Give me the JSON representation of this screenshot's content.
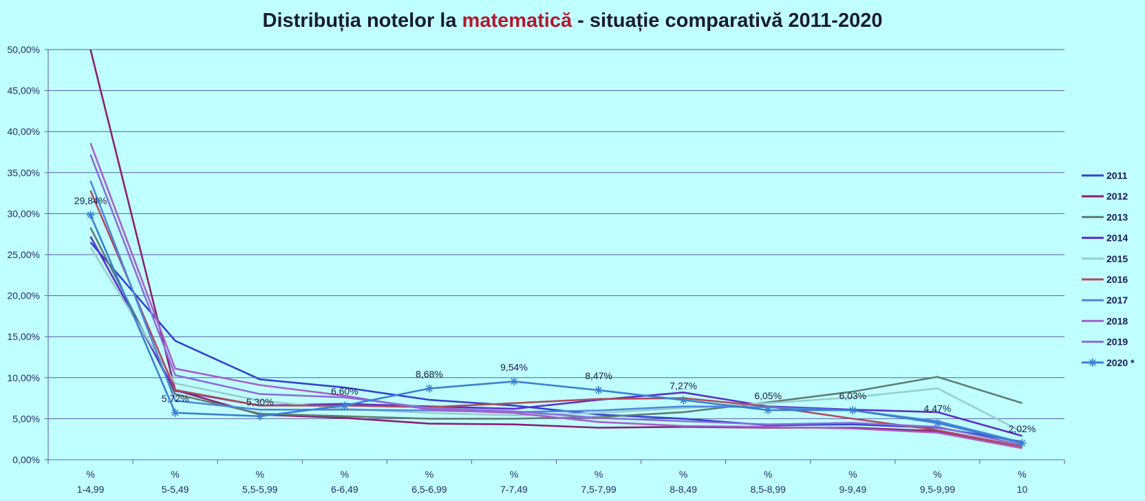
{
  "chart_data": {
    "type": "line",
    "title_parts": {
      "before": "Distribuția notelor la ",
      "highlight": "matematică",
      "after": " - situație comparativă 2011-2020"
    },
    "ylim": [
      0,
      50
    ],
    "yticks": [
      "0,00%",
      "5,00%",
      "10,00%",
      "15,00%",
      "20,00%",
      "25,00%",
      "30,00%",
      "35,00%",
      "40,00%",
      "45,00%",
      "50,00%"
    ],
    "categories": [
      {
        "top": "%",
        "bottom": "1-4,99"
      },
      {
        "top": "%",
        "bottom": "5-5,49"
      },
      {
        "top": "%",
        "bottom": "5,5-5,99"
      },
      {
        "top": "%",
        "bottom": "6-6,49"
      },
      {
        "top": "%",
        "bottom": "6,5-6,99"
      },
      {
        "top": "%",
        "bottom": "7-7,49"
      },
      {
        "top": "%",
        "bottom": "7,5-7,99"
      },
      {
        "top": "%",
        "bottom": "8-8,49"
      },
      {
        "top": "%",
        "bottom": "8,5-8,99"
      },
      {
        "top": "%",
        "bottom": "9-9,49"
      },
      {
        "top": "%",
        "bottom": "9,5-9,99"
      },
      {
        "top": "%",
        "bottom": "10"
      }
    ],
    "grid": true,
    "legend_position": "right",
    "series": [
      {
        "name": "2011",
        "color": "#3340d0",
        "values": [
          26.5,
          14.5,
          9.8,
          8.8,
          7.3,
          6.6,
          5.5,
          5.0,
          4.2,
          4.3,
          3.9,
          2.2
        ]
      },
      {
        "name": "2012",
        "color": "#8a1f6e",
        "values": [
          50.0,
          8.5,
          5.5,
          5.1,
          4.4,
          4.3,
          3.9,
          4.0,
          3.9,
          3.9,
          3.5,
          1.5
        ]
      },
      {
        "name": "2013",
        "color": "#5e7d72",
        "values": [
          28.3,
          8.0,
          5.6,
          5.3,
          5.0,
          5.0,
          5.2,
          5.8,
          7.0,
          8.3,
          10.1,
          6.9
        ]
      },
      {
        "name": "2014",
        "color": "#5a2ec8",
        "values": [
          27.2,
          8.4,
          6.6,
          6.8,
          6.5,
          6.2,
          7.3,
          8.2,
          6.5,
          6.1,
          5.8,
          2.9
        ]
      },
      {
        "name": "2015",
        "color": "#99cccc",
        "values": [
          25.9,
          9.3,
          7.2,
          6.2,
          5.7,
          5.4,
          5.7,
          6.3,
          6.9,
          7.6,
          8.7,
          3.4
        ]
      },
      {
        "name": "2016",
        "color": "#b04a5c",
        "values": [
          32.8,
          8.5,
          6.6,
          6.6,
          6.4,
          6.9,
          7.4,
          7.5,
          6.5,
          5.0,
          3.6,
          1.6
        ]
      },
      {
        "name": "2017",
        "color": "#4b87dc",
        "values": [
          34.0,
          7.2,
          6.1,
          6.1,
          6.0,
          5.8,
          6.0,
          6.5,
          6.4,
          6.0,
          4.7,
          2.1
        ]
      },
      {
        "name": "2018",
        "color": "#a85ec8",
        "values": [
          38.6,
          11.1,
          9.1,
          7.8,
          6.1,
          5.7,
          4.6,
          4.1,
          4.0,
          3.8,
          3.3,
          1.4
        ]
      },
      {
        "name": "2019",
        "color": "#8a6ed8",
        "values": [
          37.2,
          10.3,
          8.0,
          7.6,
          6.3,
          5.9,
          5.1,
          4.7,
          4.3,
          4.5,
          4.0,
          1.8
        ]
      },
      {
        "name": "2020 *",
        "color": "#3a7fd0",
        "marker": "asterisk",
        "values": [
          29.84,
          5.72,
          5.3,
          6.6,
          8.68,
          9.54,
          8.47,
          7.27,
          6.05,
          6.03,
          4.47,
          2.02
        ]
      }
    ],
    "data_labels": {
      "series": "2020 *",
      "labels": [
        "29,84%",
        "5,72%",
        "5,30%",
        "6,60%",
        "8,68%",
        "9,54%",
        "8,47%",
        "7,27%",
        "6,05%",
        "6,03%",
        "4,47%",
        "2,02%"
      ]
    }
  }
}
